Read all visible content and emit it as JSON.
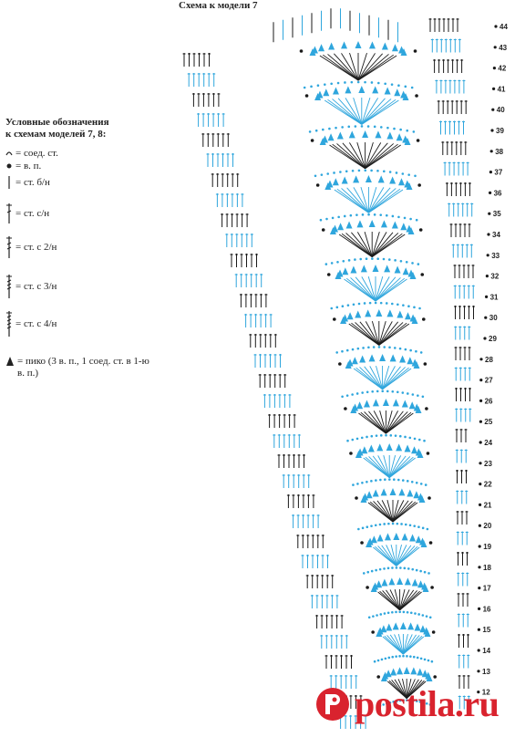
{
  "title": "Схема к модели 7",
  "legend": {
    "heading_line1": "Условные обозначения",
    "heading_line2": "к схемам моделей 7, 8:",
    "items": [
      {
        "icon": "slip-stitch-icon",
        "label": "= соед. ст."
      },
      {
        "icon": "chain-stitch-icon",
        "label": "= в. п."
      },
      {
        "icon": "single-crochet-icon",
        "label": "= ст. б/н"
      },
      {
        "icon": "double-crochet-icon",
        "label": "= ст. с/н"
      },
      {
        "icon": "treble-crochet-icon",
        "label": "= ст. с 2/н"
      },
      {
        "icon": "double-treble-icon",
        "label": "= ст. с 3/н"
      },
      {
        "icon": "triple-treble-icon",
        "label": "= ст. с 4/н"
      },
      {
        "icon": "picot-icon",
        "label": "= пико (3 в. п., 1 соед. ст. в 1-ю в. п.)"
      }
    ]
  },
  "row_numbers": [
    "44",
    "43",
    "42",
    "41",
    "40",
    "39",
    "38",
    "37",
    "36",
    "35",
    "34",
    "33",
    "32",
    "31",
    "30",
    "29",
    "28",
    "27",
    "26",
    "25",
    "24",
    "23",
    "22",
    "21",
    "20",
    "19",
    "18",
    "17",
    "16",
    "15",
    "14",
    "13",
    "12"
  ],
  "watermark": "postila.ru",
  "colors": {
    "blue": "#2fa6dd",
    "black": "#1a1a1a",
    "brand_red": "#d9232e"
  }
}
